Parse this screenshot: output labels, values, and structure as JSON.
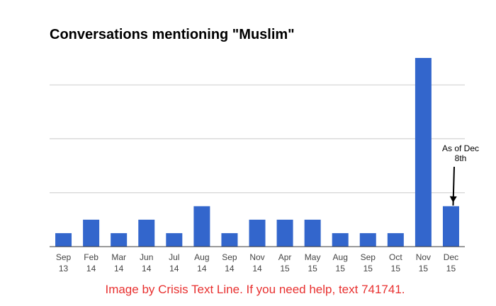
{
  "chart_data": {
    "type": "bar",
    "title": "Conversations mentioning \"Muslim\"",
    "xlabel": "",
    "ylabel": "",
    "ylim": [
      0,
      14
    ],
    "gridlines": [
      0,
      4,
      8,
      12
    ],
    "y_tick_labels_shown": false,
    "grid": true,
    "categories": [
      [
        "Sep",
        "13"
      ],
      [
        "Feb",
        "14"
      ],
      [
        "Mar",
        "14"
      ],
      [
        "Jun",
        "14"
      ],
      [
        "Jul",
        "14"
      ],
      [
        "Aug",
        "14"
      ],
      [
        "Sep",
        "14"
      ],
      [
        "Nov",
        "14"
      ],
      [
        "Apr",
        "15"
      ],
      [
        "May",
        "15"
      ],
      [
        "Aug",
        "15"
      ],
      [
        "Sep",
        "15"
      ],
      [
        "Oct",
        "15"
      ],
      [
        "Nov",
        "15"
      ],
      [
        "Dec",
        "15"
      ]
    ],
    "values": [
      1,
      2,
      1,
      2,
      1,
      3,
      1,
      2,
      2,
      2,
      1,
      1,
      1,
      14,
      3
    ],
    "bar_color": "#3366cc",
    "annotation": {
      "lines": [
        "As of Dec",
        "8th"
      ],
      "target_category_index": 14
    }
  },
  "footer": {
    "credit": "Image by Crisis Text Line. If you need help, text 741741."
  },
  "colors": {
    "credit_text": "#e8302f",
    "grid": "#cccccc",
    "axis": "#333333"
  }
}
